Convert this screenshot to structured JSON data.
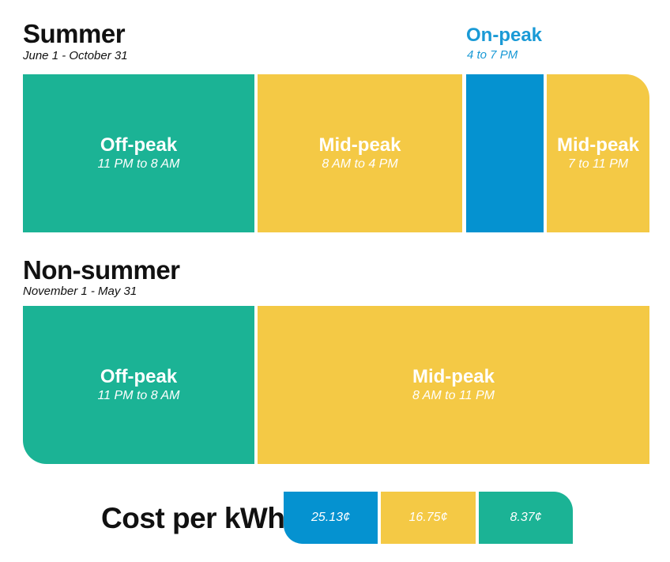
{
  "summer": {
    "title": "Summer",
    "dates": "June 1 - October 31",
    "on_peak_callout": {
      "name": "On-peak",
      "time": "4 to 7 PM"
    },
    "blocks": [
      {
        "name": "Off-peak",
        "time": "11 PM to 8 AM"
      },
      {
        "name": "Mid-peak",
        "time": "8 AM to 4 PM"
      },
      {
        "name": "",
        "time": ""
      },
      {
        "name": "Mid-peak",
        "time": "7 to 11 PM"
      }
    ]
  },
  "non_summer": {
    "title": "Non-summer",
    "dates": "November 1 - May 31",
    "blocks": [
      {
        "name": "Off-peak",
        "time": "11 PM to 8 AM"
      },
      {
        "name": "Mid-peak",
        "time": "8 AM to 11 PM"
      }
    ]
  },
  "cost": {
    "title": "Cost per kWh",
    "rates": [
      {
        "label": "25.13¢",
        "color": "#0592d0"
      },
      {
        "label": "16.75¢",
        "color": "#f4c945"
      },
      {
        "label": "8.37¢",
        "color": "#1bb395"
      }
    ]
  },
  "colors": {
    "off_peak": "#1bb395",
    "mid_peak": "#f4c945",
    "on_peak": "#0592d0"
  }
}
